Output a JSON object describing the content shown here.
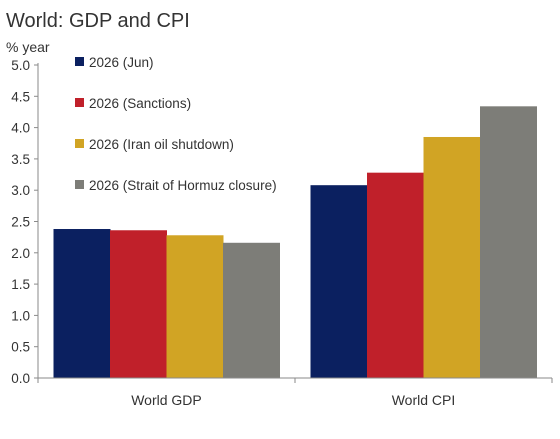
{
  "chart_data": {
    "type": "bar",
    "title": "World: GDP and CPI",
    "ylabel": "% year",
    "xlabel": "",
    "categories": [
      "World GDP",
      "World CPI"
    ],
    "ylim": [
      0,
      5
    ],
    "yticks": [
      "0.0",
      "0.5",
      "1.0",
      "1.5",
      "2.0",
      "2.5",
      "3.0",
      "3.5",
      "4.0",
      "4.5",
      "5.0"
    ],
    "grid": false,
    "legend_position": "top-left",
    "series": [
      {
        "name": "2026 (Jun)",
        "color": "#0b2060",
        "values": [
          2.38,
          3.08
        ]
      },
      {
        "name": "2026 (Sanctions)",
        "color": "#c0202a",
        "values": [
          2.36,
          3.28
        ]
      },
      {
        "name": "2026 (Iran oil shutdown)",
        "color": "#d1a424",
        "values": [
          2.28,
          3.85
        ]
      },
      {
        "name": "2026 (Strait of Hormuz closure)",
        "color": "#7d7d78",
        "values": [
          2.16,
          4.34
        ]
      }
    ]
  }
}
